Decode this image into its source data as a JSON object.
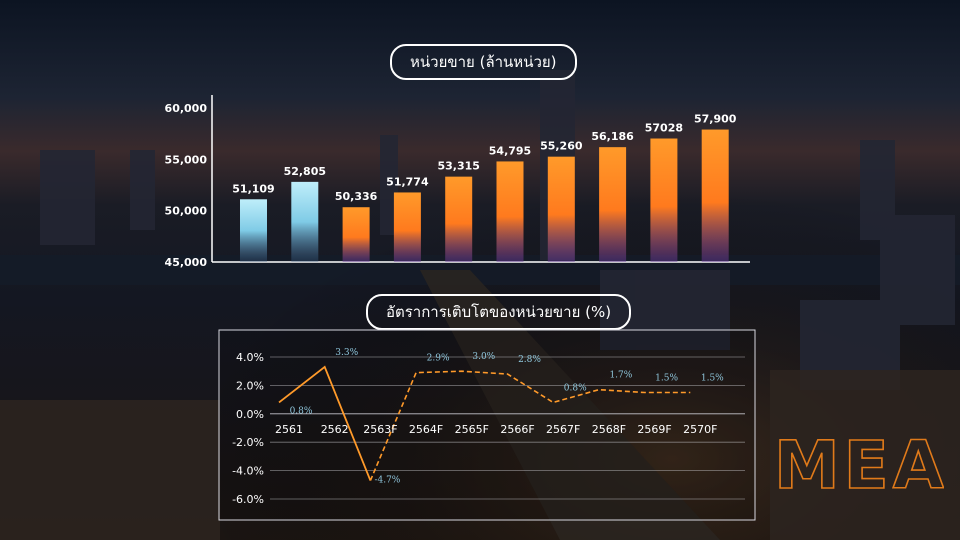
{
  "colors": {
    "blue_bar": "#8fd6ef",
    "orange_bar": "#ff8a22",
    "growth_line": "#ff9a2a",
    "growth_label": "#8fc6dc",
    "logo": "#e07a1a"
  },
  "logo_text": "MEA",
  "chart_data": [
    {
      "type": "bar",
      "title": "หน่วยขาย (ล้านหน่วย)",
      "ylim": [
        45000,
        60000
      ],
      "yticks": [
        "45,000",
        "50,000",
        "55,000",
        "60,000"
      ],
      "ytick_values": [
        45000,
        50000,
        55000,
        60000
      ],
      "values": [
        51109,
        52805,
        50336,
        51774,
        53315,
        54795,
        55260,
        56186,
        57028,
        57900
      ],
      "data_labels": [
        "51,109",
        "52,805",
        "50,336",
        "51,774",
        "53,315",
        "54,795",
        "55,260",
        "56,186",
        "57028",
        "57,900"
      ],
      "bar_colors": [
        "blue",
        "blue",
        "orange",
        "orange",
        "orange",
        "orange",
        "orange",
        "orange",
        "orange",
        "orange"
      ]
    },
    {
      "type": "line",
      "title": "อัตราการเติบโตของหน่วยขาย (%)",
      "categories": [
        "2561",
        "2562",
        "2563F",
        "2564F",
        "2565F",
        "2566F",
        "2567F",
        "2568F",
        "2569F",
        "2570F"
      ],
      "values": [
        0.8,
        3.3,
        -4.7,
        2.9,
        3.0,
        2.8,
        0.8,
        1.7,
        1.5,
        1.5
      ],
      "data_labels": [
        "0.8%",
        "3.3%",
        "-4.7%",
        "2.9%",
        "3.0%",
        "2.8%",
        "0.8%",
        "1.7%",
        "1.5%",
        "1.5%"
      ],
      "ylim": [
        -6.0,
        4.0
      ],
      "yticks": [
        "-6.0%",
        "-4.0%",
        "-2.0%",
        "0.0%",
        "2.0%",
        "4.0%"
      ],
      "ytick_values": [
        -6,
        -4,
        -2,
        0,
        2,
        4
      ],
      "solid_until": "2563F",
      "dashed_from": "2563F",
      "grid": true
    }
  ]
}
